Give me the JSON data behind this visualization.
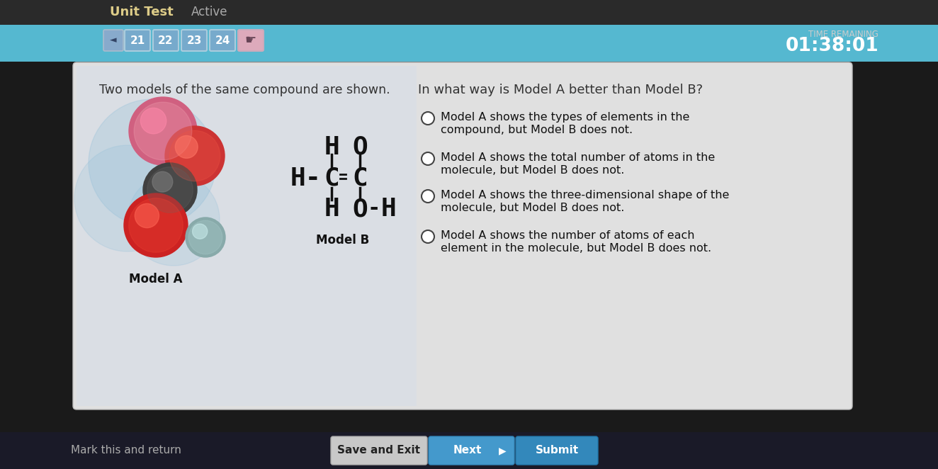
{
  "time_label": "TIME REMAINING",
  "time_value": "01:38:01",
  "nav_buttons": [
    "21",
    "22",
    "23",
    "24"
  ],
  "question_left": "Two models of the same compound are shown.",
  "question_right": "In what way is Model A better than Model B?",
  "choices": [
    [
      "Model A shows the types of elements in the",
      "compound, but Model B does not."
    ],
    [
      "Model A shows the total number of atoms in the",
      "molecule, but Model B does not."
    ],
    [
      "Model A shows the three-dimensional shape of the",
      "molecule, but Model B does not."
    ],
    [
      "Model A shows the number of atoms of each",
      "element in the molecule, but Model B does not."
    ]
  ],
  "model_a_label": "Model A",
  "model_b_label": "Model B",
  "bottom_buttons": [
    "Mark this and return",
    "Save and Exit",
    "Next",
    "Submit"
  ],
  "header_bg": "#2a2a2a",
  "nav_bg": "#5ab8d4",
  "outer_bg": "#1a1a1a",
  "card_bg": "#e8e8e8",
  "card_bg2": "#d8d8d8",
  "bottom_bg": "#1a1a2e",
  "nav_btn_bg": "none",
  "nav_btn_border": "#aaccdd",
  "time_color": "#ffffff",
  "card_text": "#111111",
  "choice_text": "#111111",
  "btn_save_bg": "#c8c8c8",
  "btn_next_bg": "#4499cc",
  "btn_submit_bg": "#3388bb"
}
